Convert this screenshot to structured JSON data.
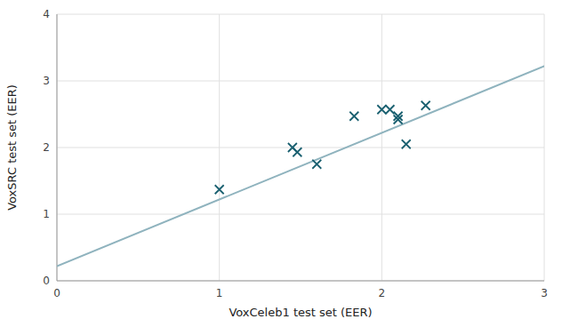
{
  "chart_data": {
    "type": "scatter",
    "xlabel": "VoxCeleb1 test set (EER)",
    "ylabel": "VoxSRC test set (EER)",
    "xlim": [
      0,
      3
    ],
    "ylim": [
      0,
      4
    ],
    "xticks": [
      0,
      1,
      2,
      3
    ],
    "yticks": [
      0,
      1,
      2,
      3,
      4
    ],
    "grid": true,
    "series": [
      {
        "type": "line",
        "color": "#8fb3be",
        "x": [
          0,
          3
        ],
        "values": [
          0.22,
          3.22
        ]
      },
      {
        "type": "scatter",
        "marker": "x",
        "color": "#1a6070",
        "x": [
          1.0,
          1.45,
          1.48,
          1.6,
          1.83,
          2.0,
          2.05,
          2.1,
          2.1,
          2.15,
          2.27
        ],
        "values": [
          1.37,
          2.0,
          1.93,
          1.75,
          2.47,
          2.57,
          2.57,
          2.47,
          2.42,
          2.05,
          2.63
        ]
      }
    ]
  }
}
